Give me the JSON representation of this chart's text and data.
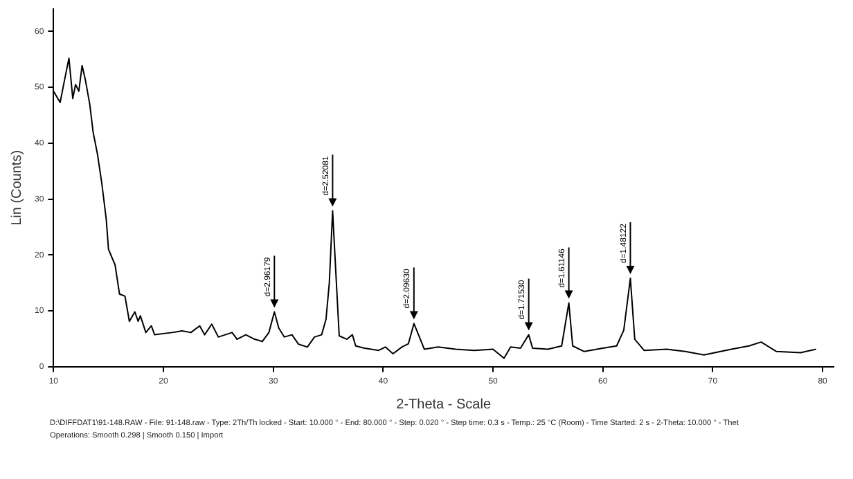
{
  "chart_data": {
    "type": "line",
    "xlabel": "2-Theta - Scale",
    "ylabel": "Lin (Counts)",
    "xlim": [
      10,
      81
    ],
    "ylim": [
      0,
      64
    ],
    "xticks": [
      10,
      20,
      30,
      40,
      50,
      60,
      70,
      80
    ],
    "yticks": [
      0,
      10,
      20,
      30,
      40,
      50,
      60
    ],
    "grid": false,
    "legend": false,
    "marker": "none",
    "line_style": "solid",
    "series": [
      {
        "color": "#000000",
        "x": [
          10,
          10.6,
          11.0,
          11.4,
          11.75,
          12.0,
          12.3,
          12.6,
          12.9,
          13.3,
          13.6,
          14.0,
          14.4,
          14.8,
          15.0,
          15.6,
          16.0,
          16.5,
          16.9,
          17.4,
          17.7,
          17.9,
          18.4,
          18.9,
          19.2,
          20.8,
          21.7,
          22.5,
          23.3,
          23.75,
          24.4,
          25,
          26.25,
          26.7,
          27.5,
          28.3,
          29,
          29.6,
          30.1,
          30.5,
          31.0,
          31.7,
          32.3,
          33.1,
          33.75,
          34.4,
          34.8,
          35.1,
          35.4,
          35.7,
          36.0,
          36.7,
          37.2,
          37.5,
          38.3,
          39.6,
          40.2,
          40.9,
          41.7,
          42.3,
          42.8,
          43.3,
          43.75,
          45,
          46.6,
          48.3,
          50,
          51,
          51.6,
          52.5,
          53.25,
          53.6,
          55,
          56.25,
          56.9,
          57.25,
          58.3,
          60,
          61.25,
          61.9,
          62.5,
          62.9,
          63.75,
          65.8,
          67.5,
          69.2,
          71.7,
          73.3,
          74.4,
          75.8,
          78,
          79.4
        ],
        "values": [
          49.3,
          47.3,
          51.3,
          55.2,
          48,
          50.5,
          49.3,
          53.9,
          51.3,
          46.9,
          42,
          38,
          32.7,
          26.3,
          21,
          18.2,
          13,
          12.6,
          8.1,
          9.8,
          8.1,
          9.1,
          6.1,
          7.3,
          5.7,
          6.1,
          6.4,
          6.1,
          7.3,
          5.7,
          7.6,
          5.3,
          6.1,
          4.9,
          5.7,
          4.9,
          4.5,
          6.1,
          9.8,
          6.9,
          5.3,
          5.7,
          4,
          3.5,
          5.3,
          5.7,
          8.5,
          15,
          27.9,
          16.6,
          5.5,
          4.9,
          5.7,
          3.7,
          3.3,
          2.9,
          3.5,
          2.3,
          3.5,
          4.1,
          7.7,
          5.3,
          3.1,
          3.5,
          3.1,
          2.9,
          3.1,
          1.5,
          3.5,
          3.3,
          5.7,
          3.3,
          3.1,
          3.7,
          11.4,
          3.7,
          2.7,
          3.3,
          3.7,
          6.5,
          15.8,
          4.9,
          2.9,
          3.1,
          2.7,
          2.1,
          3.1,
          3.7,
          4.4,
          2.7,
          2.5,
          3.1
        ]
      }
    ],
    "annotations": [
      {
        "text": "d=2.96179",
        "x": 30.1,
        "y": 9.8
      },
      {
        "text": "d=2.52081",
        "x": 35.4,
        "y": 27.9
      },
      {
        "text": "d=2.09630",
        "x": 42.8,
        "y": 7.7
      },
      {
        "text": "d=1.71530",
        "x": 53.25,
        "y": 5.7
      },
      {
        "text": "d=1.61146",
        "x": 56.9,
        "y": 11.4
      },
      {
        "text": "d=1.48122",
        "x": 62.5,
        "y": 15.8
      },
      "D:\\DIFFDAT1\\91-148.RAW - File: 91-148.raw - Type: 2Th/Th locked - Start: 10.000 ° - End: 80.000 ° - Step: 0.020 ° - Step time: 0.3 s - Temp.: 25 °C (Room) - Time Started: 2 s - 2-Theta: 10.000 ° - Thet",
      "Operations: Smooth 0.298 | Smooth 0.150 | Import"
    ]
  }
}
